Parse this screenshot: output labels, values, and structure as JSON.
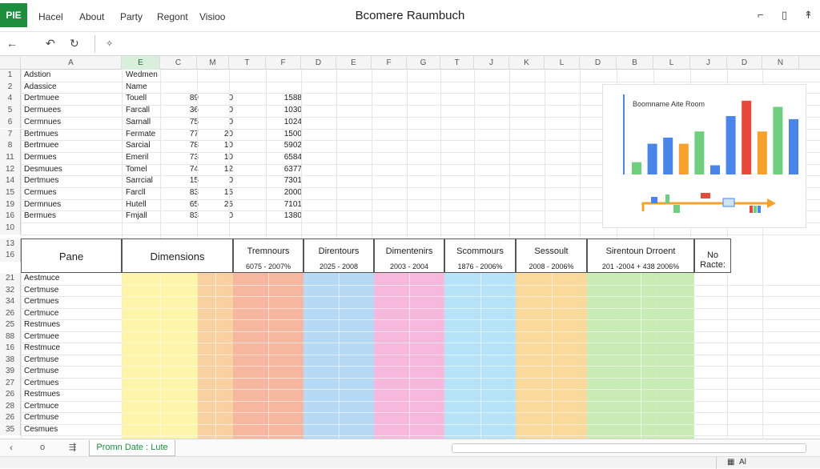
{
  "app": {
    "badge": "PIE",
    "title": "Bcomere Raumbuch"
  },
  "menu": [
    "Hacel",
    "About",
    "Party",
    "Regont",
    "Visioo"
  ],
  "titlebar_icons": [
    "minimize-icon",
    "restore-icon",
    "pin-icon"
  ],
  "toolbar": {
    "back": "←",
    "undo": "↶",
    "redo": "↻",
    "fx": "✧"
  },
  "columns": [
    "A",
    "E",
    "C",
    "M",
    "T",
    "F",
    "D",
    "E",
    "F",
    "G",
    "T",
    "J",
    "K",
    "L",
    "D",
    "B",
    "L",
    "J",
    "D",
    "N"
  ],
  "selected_column_index": 1,
  "upper_rows": [
    {
      "row": "1",
      "a": "Adstion",
      "b": "Wedmen",
      "c": "",
      "d": "",
      "e": ""
    },
    {
      "row": "2",
      "a": "Adassice",
      "b": "Name",
      "c": "",
      "d": "",
      "e": ""
    },
    {
      "row": "4",
      "a": "Dertmuee",
      "b": "Touell",
      "c": "89",
      "d": "0",
      "e": "1588"
    },
    {
      "row": "5",
      "a": "Dermuees",
      "b": "Farcall",
      "c": "36",
      "d": "0",
      "e": "1030"
    },
    {
      "row": "6",
      "a": "Cermnues",
      "b": "Sarnall",
      "c": "75",
      "d": "0",
      "e": "1024"
    },
    {
      "row": "7",
      "a": "Bertmues",
      "b": "Fermate",
      "c": "77",
      "d": "20",
      "e": "1500"
    },
    {
      "row": "8",
      "a": "Bertmuee",
      "b": "Sarcial",
      "c": "78",
      "d": "10",
      "e": "5902"
    },
    {
      "row": "11",
      "a": "Dermues",
      "b": "Emeril",
      "c": "73",
      "d": "10",
      "e": "6584"
    },
    {
      "row": "12",
      "a": "Desmuues",
      "b": "Tomel",
      "c": "74",
      "d": "12",
      "e": "6377"
    },
    {
      "row": "14",
      "a": "Dertmues",
      "b": "Sarrcial",
      "c": "15",
      "d": "0",
      "e": "7301"
    },
    {
      "row": "15",
      "a": "Cermues",
      "b": "Farcll",
      "c": "83",
      "d": "15",
      "e": "2000"
    },
    {
      "row": "19",
      "a": "Dermnues",
      "b": "Hutell",
      "c": "65",
      "d": "25",
      "e": "7101"
    },
    {
      "row": "16",
      "a": "Bermues",
      "b": "Fmjall",
      "c": "83",
      "d": "0",
      "e": "1380"
    }
  ],
  "header_rows": [
    "10",
    "13",
    "16"
  ],
  "table_headers": [
    {
      "title": "Pane",
      "sub": ""
    },
    {
      "title": "Dimensions",
      "sub": ""
    },
    {
      "title": "Tremnours",
      "sub": "6075 - 2007%"
    },
    {
      "title": "Direntours",
      "sub": "2025 - 2008"
    },
    {
      "title": "Dimentenirs",
      "sub": "2003 - 2004"
    },
    {
      "title": "Scommours",
      "sub": "1876 - 2006%"
    },
    {
      "title": "Sessoult",
      "sub": "2008 - 2006%"
    },
    {
      "title": "Sirentoun Drroent",
      "sub": "201 -2004 + 438 2006%"
    },
    {
      "title": "No Racte:",
      "sub": ""
    }
  ],
  "lower_rows": [
    {
      "row": "21",
      "a": "Aestmuce"
    },
    {
      "row": "32",
      "a": "Certmuse"
    },
    {
      "row": "34",
      "a": "Certmues"
    },
    {
      "row": "26",
      "a": "Certmuce"
    },
    {
      "row": "25",
      "a": "Restmues"
    },
    {
      "row": "88",
      "a": "Certmuee"
    },
    {
      "row": "16",
      "a": "Restmuce"
    },
    {
      "row": "38",
      "a": "Certmuse"
    },
    {
      "row": "39",
      "a": "Certmuse"
    },
    {
      "row": "27",
      "a": "Certmues"
    },
    {
      "row": "26",
      "a": "Restmues"
    },
    {
      "row": "28",
      "a": "Certmuce"
    },
    {
      "row": "26",
      "a": "Certmuse"
    },
    {
      "row": "35",
      "a": "Cesmues"
    }
  ],
  "band_colors": [
    "#fbf39b",
    "#f8c98f",
    "#f4a98f",
    "#a9d3f5",
    "#f4abd6",
    "#a9def6",
    "#f9d28b",
    "#bfe8a8"
  ],
  "chart_data": {
    "type": "bar",
    "title": "Boomname Aite Room",
    "values": [
      2,
      5,
      6,
      5,
      7,
      1.5,
      9.5,
      12,
      7,
      11,
      9
    ],
    "colors": [
      "#6fcf7f",
      "#4a86e8",
      "#4a86e8",
      "#f6a02d",
      "#6fcf7f",
      "#4a86e8",
      "#4a86e8",
      "#e64a3c",
      "#f6a02d",
      "#6fcf7f",
      "#4a86e8"
    ],
    "ylim": [
      0,
      12.5
    ]
  },
  "sheet": {
    "tab": "Promn Date : Lute",
    "status_right": "Al"
  }
}
